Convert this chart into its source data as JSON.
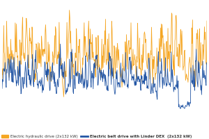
{
  "orange_color": "#F5A623",
  "blue_color": "#2255A4",
  "background_color": "#FFFFFF",
  "legend_orange_label": "Electric hydraulic drive (2x132 kW)",
  "legend_blue_label": "Electric belt drive with Linder DEX  (2x132 kW)",
  "n_points": 500,
  "seed": 7,
  "ylim_min": 0.0,
  "ylim_max": 1.0
}
